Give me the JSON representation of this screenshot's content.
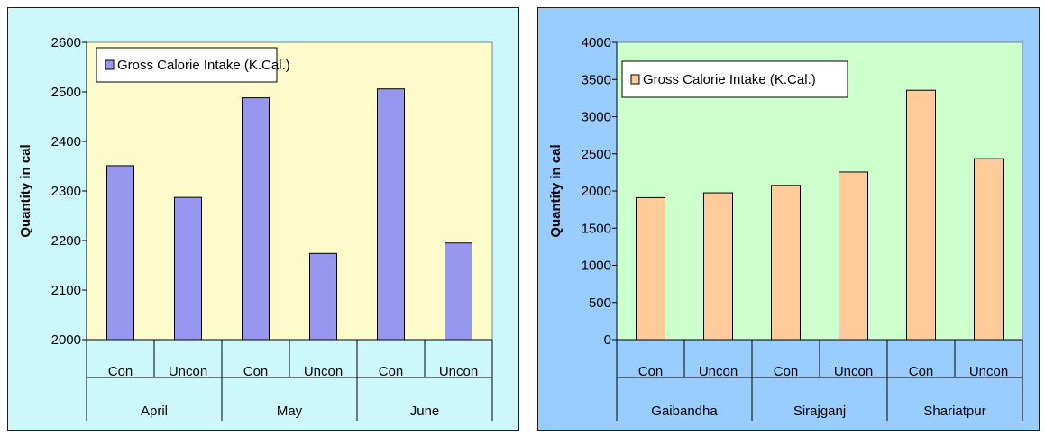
{
  "charts": [
    {
      "panel_bg": "#ccf7fb",
      "plot_bg": "#fdfbcb",
      "bar_fill": "#9897ef",
      "chart_data": {
        "type": "bar",
        "ylabel": "Quantity in cal",
        "ylim": [
          2000,
          2600
        ],
        "ytick_step": 100,
        "yticks": [
          "2000",
          "2100",
          "2200",
          "2300",
          "2400",
          "2500",
          "2600"
        ],
        "groups": [
          "April",
          "May",
          "June"
        ],
        "categories": [
          "Con",
          "Uncon",
          "Con",
          "Uncon",
          "Con",
          "Uncon"
        ],
        "series": [
          {
            "name": "Gross Calorie Intake (K.Cal.)",
            "values": [
              2351,
              2287,
              2488,
              2174,
              2506,
              2195
            ]
          }
        ],
        "legend_position": "top-left",
        "grid": false
      }
    },
    {
      "panel_bg": "#99ccff",
      "plot_bg": "#ccffcc",
      "bar_fill": "#ffcc99",
      "chart_data": {
        "type": "bar",
        "ylabel": "Quantity in cal",
        "ylim": [
          0,
          4000
        ],
        "ytick_step": 500,
        "yticks": [
          "0",
          "500",
          "1000",
          "1500",
          "2000",
          "2500",
          "3000",
          "3500",
          "4000"
        ],
        "groups": [
          "Gaibandha",
          "Sirajganj",
          "Shariatpur"
        ],
        "categories": [
          "Con",
          "Uncon",
          "Con",
          "Uncon",
          "Con",
          "Uncon"
        ],
        "series": [
          {
            "name": "Gross Calorie Intake (K.Cal.)",
            "values": [
              1910,
              1975,
              2075,
              2255,
              3355,
              2435
            ]
          }
        ],
        "legend_position": "top-left",
        "grid": false
      }
    }
  ]
}
